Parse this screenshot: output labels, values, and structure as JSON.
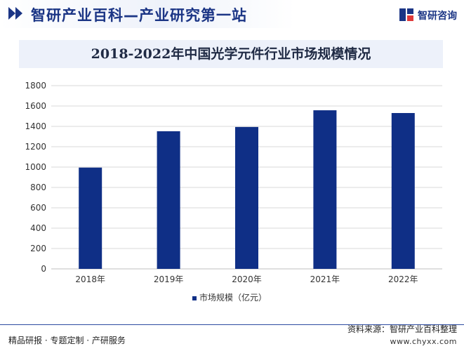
{
  "header": {
    "title": "智研产业百科—产业研究第一站",
    "logo_text": "智研咨询",
    "logo_icon": "zhiyan-logo-icon"
  },
  "footer": {
    "left_text": "精品研报 · 专题定制 · 产研服务",
    "source": "资料来源：智研产业百科整理",
    "url": "www.chyxx.com"
  },
  "colors": {
    "bar": "#0f2f86",
    "brand": "#1b3585",
    "axis": "#bfbfbf",
    "grid": "#d9d9d9"
  },
  "chart_data": {
    "type": "bar",
    "title": "2018-2022年中国光学元件行业市场规模情况",
    "categories": [
      "2018年",
      "2019年",
      "2020年",
      "2021年",
      "2022年"
    ],
    "series": [
      {
        "name": "市场规模（亿元）",
        "values": [
          995,
          1352,
          1394,
          1558,
          1531
        ]
      }
    ],
    "ylim": [
      0,
      1800
    ],
    "yticks": [
      0,
      200,
      400,
      600,
      800,
      1000,
      1200,
      1400,
      1600,
      1800
    ],
    "grid": true,
    "legend_position": "bottom"
  }
}
